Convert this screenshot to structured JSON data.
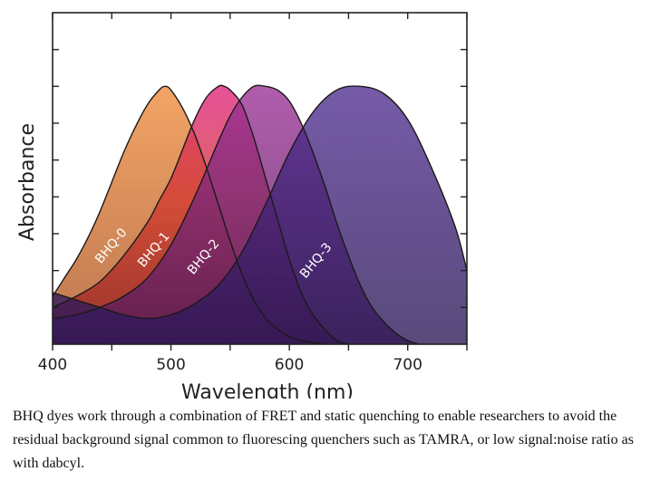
{
  "chart_data": {
    "type": "area",
    "xlabel": "Wavelength (nm)",
    "ylabel": "Absorbance",
    "xlim": [
      400,
      750
    ],
    "xticks": [
      400,
      500,
      600,
      700
    ],
    "grid": false,
    "legend": "inline labels on curves",
    "series": [
      {
        "name": "BHQ-0",
        "color": "#e0722f",
        "x": [
          400,
          410,
          420,
          430,
          440,
          450,
          460,
          470,
          480,
          490,
          495,
          500,
          510,
          520,
          530,
          540,
          550,
          560,
          570,
          580,
          590,
          600,
          610,
          620,
          630
        ],
        "y": [
          0.13,
          0.18,
          0.23,
          0.29,
          0.36,
          0.44,
          0.52,
          0.59,
          0.65,
          0.69,
          0.7,
          0.69,
          0.64,
          0.57,
          0.48,
          0.38,
          0.28,
          0.19,
          0.12,
          0.07,
          0.04,
          0.02,
          0.01,
          0.005,
          0.0
        ]
      },
      {
        "name": "BHQ-1",
        "color": "#d7332e",
        "x": [
          400,
          420,
          440,
          460,
          480,
          490,
          500,
          510,
          520,
          530,
          540,
          545,
          550,
          560,
          570,
          580,
          590,
          600,
          610,
          620,
          630,
          640,
          650
        ],
        "y": [
          0.1,
          0.13,
          0.17,
          0.24,
          0.33,
          0.39,
          0.45,
          0.53,
          0.61,
          0.67,
          0.7,
          0.7,
          0.69,
          0.65,
          0.56,
          0.45,
          0.34,
          0.23,
          0.14,
          0.08,
          0.04,
          0.01,
          0.0
        ]
      },
      {
        "name": "BHQ-2",
        "color": "#8a2a87",
        "x": [
          400,
          420,
          440,
          460,
          480,
          500,
          520,
          540,
          550,
          560,
          570,
          580,
          590,
          600,
          610,
          620,
          630,
          640,
          650,
          660,
          670,
          680,
          690,
          700,
          710
        ],
        "y": [
          0.07,
          0.08,
          0.1,
          0.13,
          0.18,
          0.27,
          0.4,
          0.55,
          0.62,
          0.67,
          0.7,
          0.7,
          0.69,
          0.66,
          0.6,
          0.52,
          0.43,
          0.33,
          0.24,
          0.16,
          0.1,
          0.06,
          0.03,
          0.01,
          0.0
        ]
      },
      {
        "name": "BHQ-3",
        "color": "#4a2985",
        "x": [
          400,
          420,
          440,
          460,
          480,
          500,
          520,
          540,
          560,
          580,
          600,
          620,
          640,
          660,
          680,
          700,
          720,
          740,
          750
        ],
        "y": [
          0.14,
          0.12,
          0.1,
          0.08,
          0.07,
          0.08,
          0.11,
          0.16,
          0.25,
          0.38,
          0.52,
          0.63,
          0.69,
          0.7,
          0.68,
          0.61,
          0.48,
          0.32,
          0.2
        ]
      }
    ]
  },
  "caption": "BHQ dyes work through a combination of FRET and static quenching to enable researchers to avoid the residual background signal common to fluorescing quenchers such as TAMRA, or low signal:noise ratio as with dabcyl."
}
